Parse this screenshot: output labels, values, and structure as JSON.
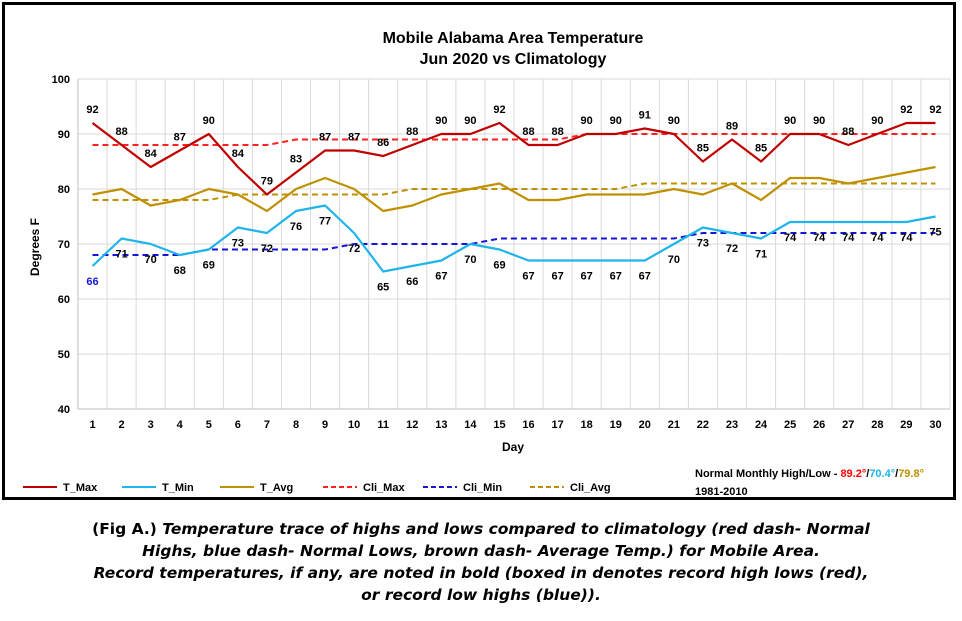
{
  "chart_data": {
    "type": "line",
    "title": "Mobile Alabama Area Temperature",
    "subtitle": "Jun 2020 vs Climatology",
    "xlabel": "Day",
    "ylabel": "Degrees F",
    "ylim": [
      40,
      100
    ],
    "yticks": [
      40,
      50,
      60,
      70,
      80,
      90,
      100
    ],
    "grid": true,
    "legend_position": "bottom",
    "x": [
      1,
      2,
      3,
      4,
      5,
      6,
      7,
      8,
      9,
      10,
      11,
      12,
      13,
      14,
      15,
      16,
      17,
      18,
      19,
      20,
      21,
      22,
      23,
      24,
      25,
      26,
      27,
      28,
      29,
      30
    ],
    "series": [
      {
        "name": "T_Max",
        "color": "#c00000",
        "style": "solid",
        "labeled": true,
        "label_pos": "above",
        "values": [
          92,
          88,
          84,
          87,
          90,
          84,
          79,
          83,
          87,
          87,
          86,
          88,
          90,
          90,
          92,
          88,
          88,
          90,
          90,
          91,
          90,
          85,
          89,
          85,
          90,
          90,
          88,
          90,
          92,
          92
        ]
      },
      {
        "name": "T_Min",
        "color": "#1eb4ec",
        "style": "solid",
        "labeled": true,
        "label_pos": "below",
        "values": [
          66,
          71,
          70,
          68,
          69,
          73,
          72,
          76,
          77,
          72,
          65,
          66,
          67,
          70,
          69,
          67,
          67,
          67,
          67,
          67,
          70,
          73,
          72,
          71,
          74,
          74,
          74,
          74,
          74,
          75
        ]
      },
      {
        "name": "T_Avg",
        "color": "#bf9000",
        "style": "solid",
        "labeled": false,
        "values": [
          79,
          80,
          77,
          78,
          80,
          79,
          76,
          80,
          82,
          80,
          76,
          77,
          79,
          80,
          81,
          78,
          78,
          79,
          79,
          79,
          80,
          79,
          81,
          78,
          82,
          82,
          81,
          82,
          83,
          84
        ]
      },
      {
        "name": "Cli_Max",
        "color": "#ff2020",
        "style": "dashed",
        "labeled": false,
        "values": [
          88,
          88,
          88,
          88,
          88,
          88,
          88,
          89,
          89,
          89,
          89,
          89,
          89,
          89,
          89,
          89,
          89,
          90,
          90,
          90,
          90,
          90,
          90,
          90,
          90,
          90,
          90,
          90,
          90,
          90
        ]
      },
      {
        "name": "Cli_Min",
        "color": "#1616d8",
        "style": "dashed",
        "labeled": false,
        "values": [
          68,
          68,
          68,
          68,
          69,
          69,
          69,
          69,
          69,
          70,
          70,
          70,
          70,
          70,
          71,
          71,
          71,
          71,
          71,
          71,
          71,
          72,
          72,
          72,
          72,
          72,
          72,
          72,
          72,
          72
        ]
      },
      {
        "name": "Cli_Avg",
        "color": "#bf9000",
        "style": "dashed",
        "labeled": false,
        "values": [
          78,
          78,
          78,
          78,
          78,
          79,
          79,
          79,
          79,
          79,
          79,
          80,
          80,
          80,
          80,
          80,
          80,
          80,
          80,
          81,
          81,
          81,
          81,
          81,
          81,
          81,
          81,
          81,
          81,
          81
        ]
      }
    ],
    "highlighted_labels": [
      {
        "series": "T_Min",
        "day": 1,
        "color": "#1616d8"
      }
    ],
    "normals": {
      "label": "Normal Monthly High/Low - ",
      "high": "89.2°",
      "high_color": "#ff0000",
      "sep1": "/",
      "low": "70.4°",
      "low_color": "#1eb4ec",
      "sep2": "/",
      "avg": "79.8°",
      "avg_color": "#bf9000",
      "period": "1981-2010"
    }
  },
  "caption": {
    "fig": "(Fig A.) ",
    "line1": "Temperature trace of highs and lows compared to climatology (red dash- Normal",
    "line2": "Highs, blue dash- Normal Lows, brown dash- Average Temp.) for Mobile Area.",
    "line3": "Record temperatures, if any, are noted in bold (boxed in denotes record high lows (red),",
    "line4": "or record low highs (blue))."
  }
}
